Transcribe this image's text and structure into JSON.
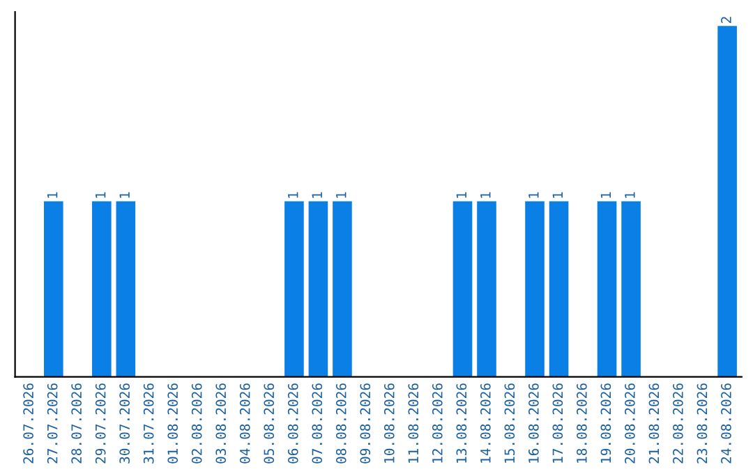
{
  "chart_data": {
    "type": "bar",
    "categories": [
      "26.07.2026",
      "27.07.2026",
      "28.07.2026",
      "29.07.2026",
      "30.07.2026",
      "31.07.2026",
      "01.08.2026",
      "02.08.2026",
      "03.08.2026",
      "04.08.2026",
      "05.08.2026",
      "06.08.2026",
      "07.08.2026",
      "08.08.2026",
      "09.08.2026",
      "10.08.2026",
      "11.08.2026",
      "12.08.2026",
      "13.08.2026",
      "14.08.2026",
      "15.08.2026",
      "16.08.2026",
      "17.08.2026",
      "18.08.2026",
      "19.08.2026",
      "20.08.2026",
      "21.08.2026",
      "22.08.2026",
      "23.08.2026",
      "24.08.2026"
    ],
    "values": [
      0,
      1,
      0,
      1,
      1,
      0,
      0,
      0,
      0,
      0,
      0,
      1,
      1,
      1,
      0,
      0,
      0,
      0,
      1,
      1,
      0,
      1,
      1,
      0,
      1,
      1,
      0,
      0,
      0,
      2
    ],
    "value_labels": [
      null,
      "1",
      null,
      "1",
      "1",
      null,
      null,
      null,
      null,
      null,
      null,
      "1",
      "1",
      "1",
      null,
      null,
      null,
      null,
      "1",
      "1",
      null,
      "1",
      "1",
      null,
      "1",
      "1",
      null,
      null,
      null,
      "2"
    ],
    "color": "#0a7fe6",
    "tick_labels": "x",
    "grid": false,
    "legend": false
  }
}
